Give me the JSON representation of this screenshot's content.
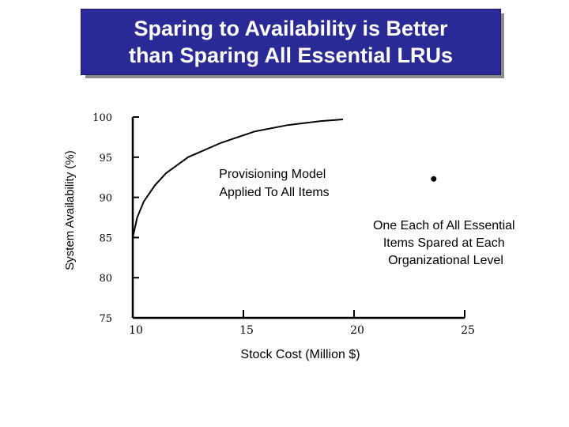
{
  "title": {
    "line1": "Sparing to Availability is Better",
    "line2": "than Sparing All Essential LRUs"
  },
  "colors": {
    "title_bg": "#2a2a96",
    "title_text": "#ffffff",
    "ink": "#000000"
  },
  "chart_data": {
    "type": "line",
    "xlabel": "Stock Cost (Million $)",
    "ylabel": "System Availability (%)",
    "xlim": [
      10,
      25
    ],
    "ylim": [
      75,
      100
    ],
    "x_ticks": [
      "10",
      "15",
      "20",
      "25"
    ],
    "y_ticks": [
      "100",
      "95",
      "90",
      "85",
      "80",
      "75"
    ],
    "grid": false,
    "series": [
      {
        "kind": "curve",
        "points": [
          [
            10.0,
            85.0
          ],
          [
            10.2,
            87.5
          ],
          [
            10.5,
            89.5
          ],
          [
            11.0,
            91.5
          ],
          [
            11.5,
            93.0
          ],
          [
            12.5,
            95.0
          ],
          [
            14.0,
            96.8
          ],
          [
            15.5,
            98.2
          ],
          [
            17.0,
            99.0
          ],
          [
            18.5,
            99.5
          ],
          [
            19.5,
            99.7
          ]
        ]
      },
      {
        "kind": "point",
        "points": [
          [
            23.6,
            92.3
          ]
        ]
      }
    ],
    "annotations": [
      {
        "id": "provisioning",
        "lines": [
          "Provisioning Model",
          "Applied To All Items"
        ]
      },
      {
        "id": "one-each",
        "lines": [
          "One Each of All Essential",
          "Items Spared at Each",
          "Organizational Level"
        ]
      }
    ]
  }
}
